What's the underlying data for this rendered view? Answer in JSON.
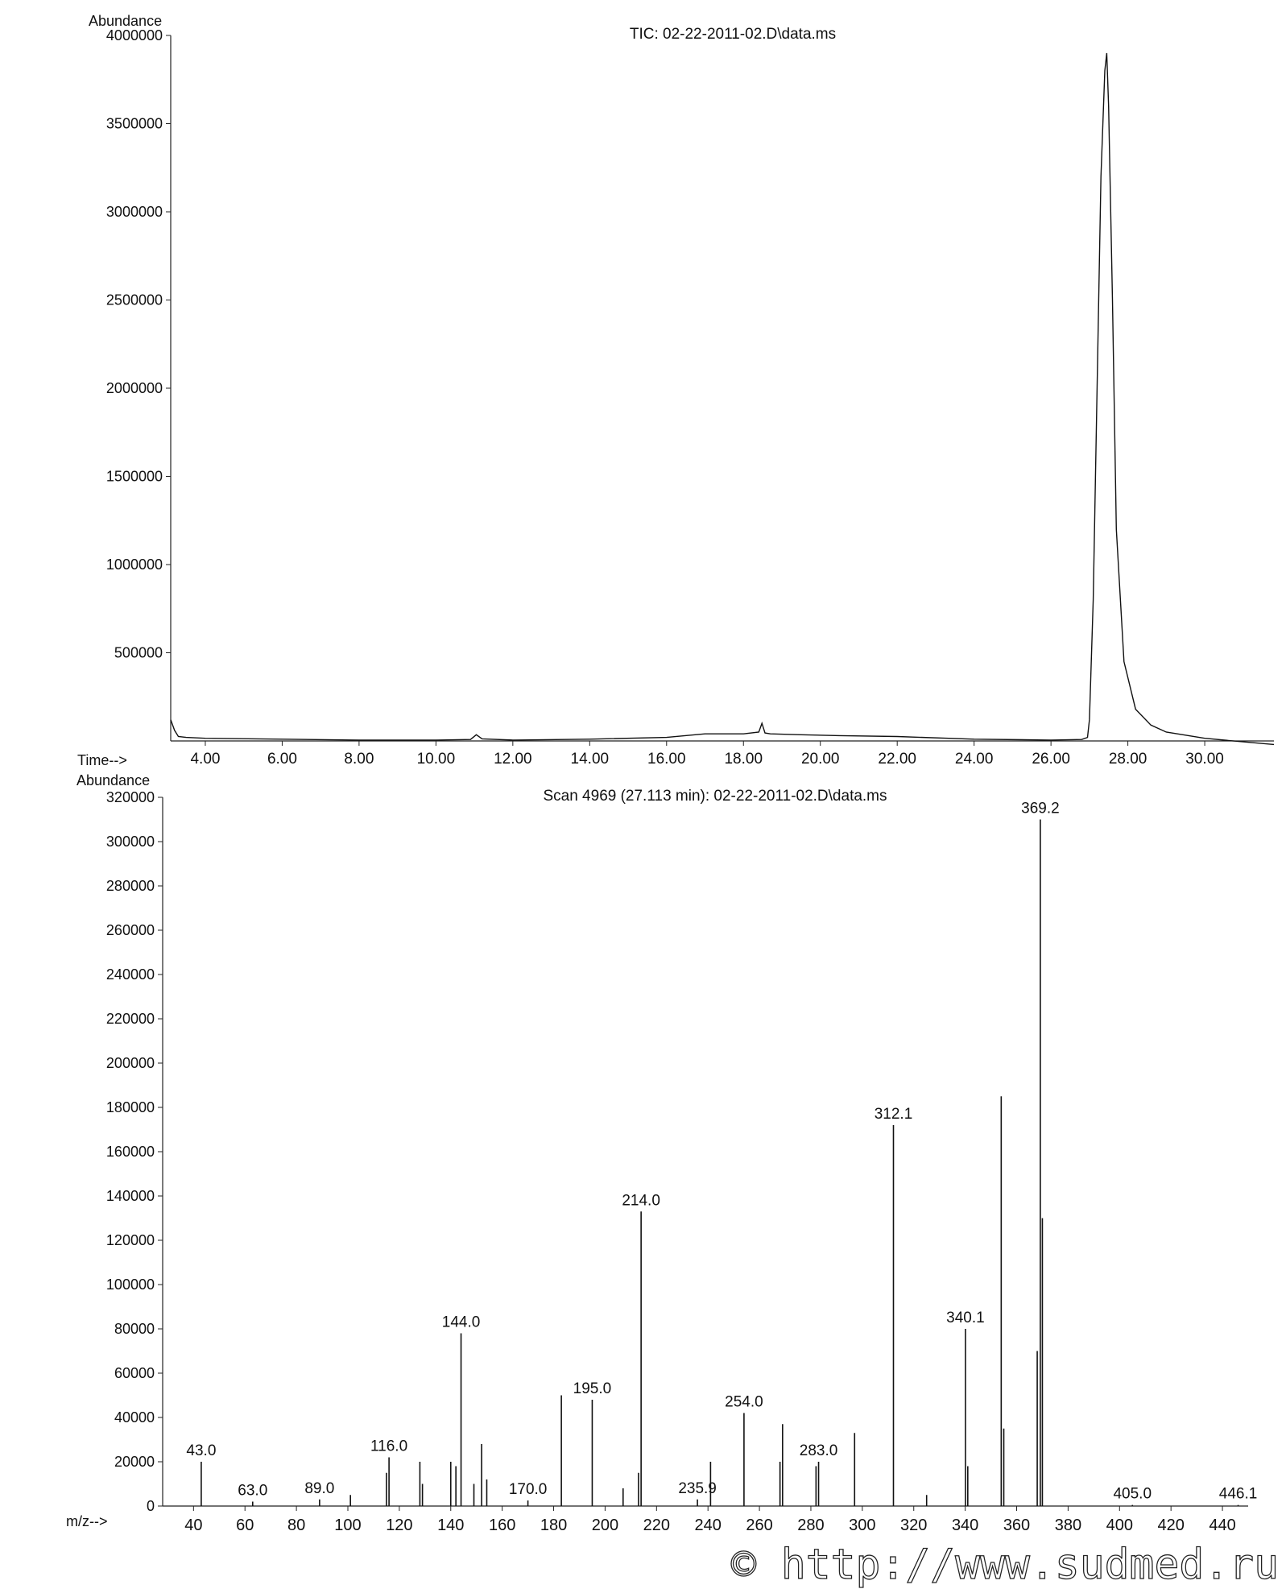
{
  "chart_data": [
    {
      "type": "line",
      "title": "TIC: 02-22-2011-02.D\\data.ms",
      "ylabel": "Abundance",
      "xlabel": "Time-->",
      "ylim": [
        0,
        4000000
      ],
      "xlim": [
        3.1,
        31.8
      ],
      "yticks": [
        4000000,
        3500000,
        3000000,
        2500000,
        2000000,
        1500000,
        1000000,
        500000
      ],
      "xticks": [
        "4.00",
        "6.00",
        "8.00",
        "10.00",
        "12.00",
        "14.00",
        "16.00",
        "18.00",
        "20.00",
        "22.00",
        "24.00",
        "26.00",
        "28.00",
        "30.00"
      ],
      "x": [
        3.1,
        3.2,
        3.3,
        3.5,
        4.0,
        6.0,
        8.0,
        10.0,
        10.9,
        11.05,
        11.2,
        12.0,
        14.0,
        16.0,
        17.0,
        18.0,
        18.4,
        18.48,
        18.56,
        18.7,
        19.5,
        20.5,
        22.0,
        24.0,
        26.0,
        26.8,
        26.95,
        27.0,
        27.1,
        27.2,
        27.3,
        27.4,
        27.45,
        27.5,
        27.6,
        27.7,
        27.9,
        28.2,
        28.6,
        29.0,
        30.0,
        31.0,
        31.8
      ],
      "y": [
        120000,
        60000,
        25000,
        20000,
        15000,
        10000,
        5000,
        5000,
        8000,
        35000,
        12000,
        5000,
        10000,
        20000,
        40000,
        40000,
        50000,
        100000,
        45000,
        40000,
        35000,
        30000,
        25000,
        10000,
        5000,
        8000,
        20000,
        120000,
        800000,
        2000000,
        3200000,
        3800000,
        3900000,
        3600000,
        2500000,
        1200000,
        450000,
        180000,
        90000,
        50000,
        15000,
        -5000,
        -20000
      ]
    },
    {
      "type": "bar",
      "title": "Scan 4969 (27.113 min): 02-22-2011-02.D\\data.ms",
      "ylabel": "Abundance",
      "xlabel": "m/z-->",
      "ylim": [
        0,
        320000
      ],
      "xlim": [
        28,
        450
      ],
      "yticks": [
        320000,
        300000,
        280000,
        260000,
        240000,
        220000,
        200000,
        180000,
        160000,
        140000,
        120000,
        100000,
        80000,
        60000,
        40000,
        20000,
        0
      ],
      "xticks": [
        40,
        60,
        80,
        100,
        120,
        140,
        160,
        180,
        200,
        220,
        240,
        260,
        280,
        300,
        320,
        340,
        360,
        380,
        400,
        420,
        440
      ],
      "peaks": [
        {
          "mz": 43.0,
          "abundance": 20000,
          "label": "43.0"
        },
        {
          "mz": 63.0,
          "abundance": 2000,
          "label": "63.0"
        },
        {
          "mz": 89.0,
          "abundance": 3000,
          "label": "89.0"
        },
        {
          "mz": 101,
          "abundance": 5000
        },
        {
          "mz": 115,
          "abundance": 15000
        },
        {
          "mz": 116.0,
          "abundance": 22000,
          "label": "116.0"
        },
        {
          "mz": 128,
          "abundance": 20000
        },
        {
          "mz": 129,
          "abundance": 10000
        },
        {
          "mz": 140,
          "abundance": 20000
        },
        {
          "mz": 142,
          "abundance": 18000
        },
        {
          "mz": 144.0,
          "abundance": 78000,
          "label": "144.0"
        },
        {
          "mz": 149,
          "abundance": 10000
        },
        {
          "mz": 152,
          "abundance": 28000
        },
        {
          "mz": 154,
          "abundance": 12000
        },
        {
          "mz": 170.0,
          "abundance": 2500,
          "label": "170.0"
        },
        {
          "mz": 183,
          "abundance": 50000
        },
        {
          "mz": 195.0,
          "abundance": 48000,
          "label": "195.0"
        },
        {
          "mz": 207,
          "abundance": 8000
        },
        {
          "mz": 213,
          "abundance": 15000
        },
        {
          "mz": 214.0,
          "abundance": 133000,
          "label": "214.0"
        },
        {
          "mz": 235.9,
          "abundance": 3000,
          "label": "235.9"
        },
        {
          "mz": 241,
          "abundance": 20000
        },
        {
          "mz": 254.0,
          "abundance": 42000,
          "label": "254.0"
        },
        {
          "mz": 268,
          "abundance": 20000
        },
        {
          "mz": 269,
          "abundance": 37000
        },
        {
          "mz": 282,
          "abundance": 18000
        },
        {
          "mz": 283.0,
          "abundance": 20000,
          "label": "283.0"
        },
        {
          "mz": 297,
          "abundance": 33000
        },
        {
          "mz": 312.1,
          "abundance": 172000,
          "label": "312.1"
        },
        {
          "mz": 325,
          "abundance": 5000
        },
        {
          "mz": 340.1,
          "abundance": 80000,
          "label": "340.1"
        },
        {
          "mz": 341,
          "abundance": 18000
        },
        {
          "mz": 354,
          "abundance": 185000
        },
        {
          "mz": 355,
          "abundance": 35000
        },
        {
          "mz": 368,
          "abundance": 70000
        },
        {
          "mz": 369.2,
          "abundance": 310000,
          "label": "369.2"
        },
        {
          "mz": 370,
          "abundance": 130000
        },
        {
          "mz": 405.0,
          "abundance": 500,
          "label": "405.0"
        },
        {
          "mz": 446.1,
          "abundance": 500,
          "label": "446.1"
        }
      ]
    }
  ],
  "watermark": "© http://www.sudmed.ru"
}
